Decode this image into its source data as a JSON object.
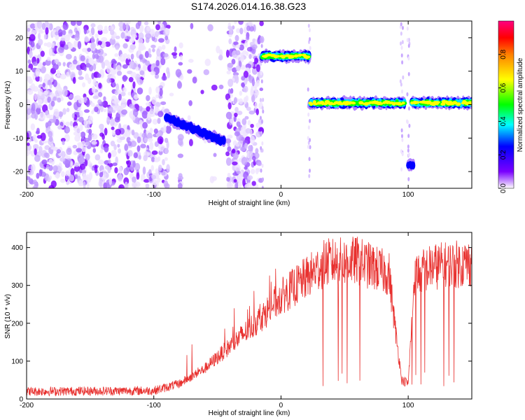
{
  "title": "S174.2026.014.16.38.G23",
  "chart_data": [
    {
      "type": "heatmap",
      "name": "spectrogram",
      "xlabel": "Height of straight line (km)",
      "ylabel": "Frequency (Hz)",
      "xlim": [
        -200,
        150
      ],
      "ylim": [
        -25,
        25
      ],
      "xticks": [
        -200,
        -100,
        0,
        100
      ],
      "xtick_labels": [
        "-200",
        "-100",
        "0",
        "100"
      ],
      "yticks": [
        20,
        10,
        0,
        -10,
        -20
      ],
      "ytick_labels": [
        "20",
        "10",
        "0",
        "-10",
        "-20"
      ],
      "colorbar": {
        "label": "Normalized spectral amplitude",
        "range": [
          0,
          1
        ],
        "ticks": [
          0.0,
          0.2,
          0.4,
          0.6,
          0.8
        ],
        "tick_labels": [
          "0.0",
          "0.2",
          "0.4",
          "0.6",
          "0.8"
        ],
        "colormap": [
          "#ffffff",
          "#7a00ff",
          "#0000ff",
          "#00ffff",
          "#00ff00",
          "#ffff00",
          "#ff8000",
          "#ff0000",
          "#ff0080"
        ]
      },
      "noise_region": {
        "x_start": -200,
        "x_end": -15,
        "gaps": [
          [
            -78,
            -42
          ],
          [
            -88,
            -80
          ]
        ]
      },
      "signal_segments": [
        {
          "x": [
            -90,
            -45
          ],
          "freq": [
            -4,
            -11
          ],
          "amplitude": 0.4
        },
        {
          "x": [
            -15,
            22
          ],
          "freq": [
            14.5,
            14.5
          ],
          "amplitude": 0.9
        },
        {
          "x": [
            23,
            97
          ],
          "freq": [
            0.5,
            0.5
          ],
          "amplitude": 0.85
        },
        {
          "x": [
            103,
            150
          ],
          "freq": [
            0.5,
            0.5
          ],
          "amplitude": 0.9
        },
        {
          "x": [
            100,
            104
          ],
          "freq": [
            -18,
            -18
          ],
          "amplitude": 0.4
        }
      ]
    },
    {
      "type": "line",
      "name": "snr",
      "xlabel": "Height of straight line (km)",
      "ylabel": "SNR (10 * v/v)",
      "xlim": [
        -200,
        150
      ],
      "ylim": [
        0,
        440
      ],
      "xticks": [
        -200,
        -100,
        0,
        100
      ],
      "xtick_labels": [
        "-200",
        "-100",
        "0",
        "100"
      ],
      "yticks": [
        0,
        100,
        200,
        300,
        400
      ],
      "ytick_labels": [
        "0",
        "100",
        "200",
        "300",
        "400"
      ],
      "color": "#e8302e",
      "envelope": {
        "x": [
          -200,
          -100,
          -80,
          -60,
          -40,
          -20,
          0,
          20,
          35,
          60,
          85,
          90,
          95,
          100,
          105,
          120,
          150
        ],
        "y": [
          20,
          22,
          40,
          80,
          140,
          200,
          270,
          320,
          360,
          365,
          330,
          180,
          50,
          40,
          330,
          350,
          360
        ]
      },
      "dropouts": [
        33,
        45,
        48,
        52,
        62,
        98,
        103,
        106,
        110,
        113,
        128,
        132,
        136
      ]
    }
  ]
}
